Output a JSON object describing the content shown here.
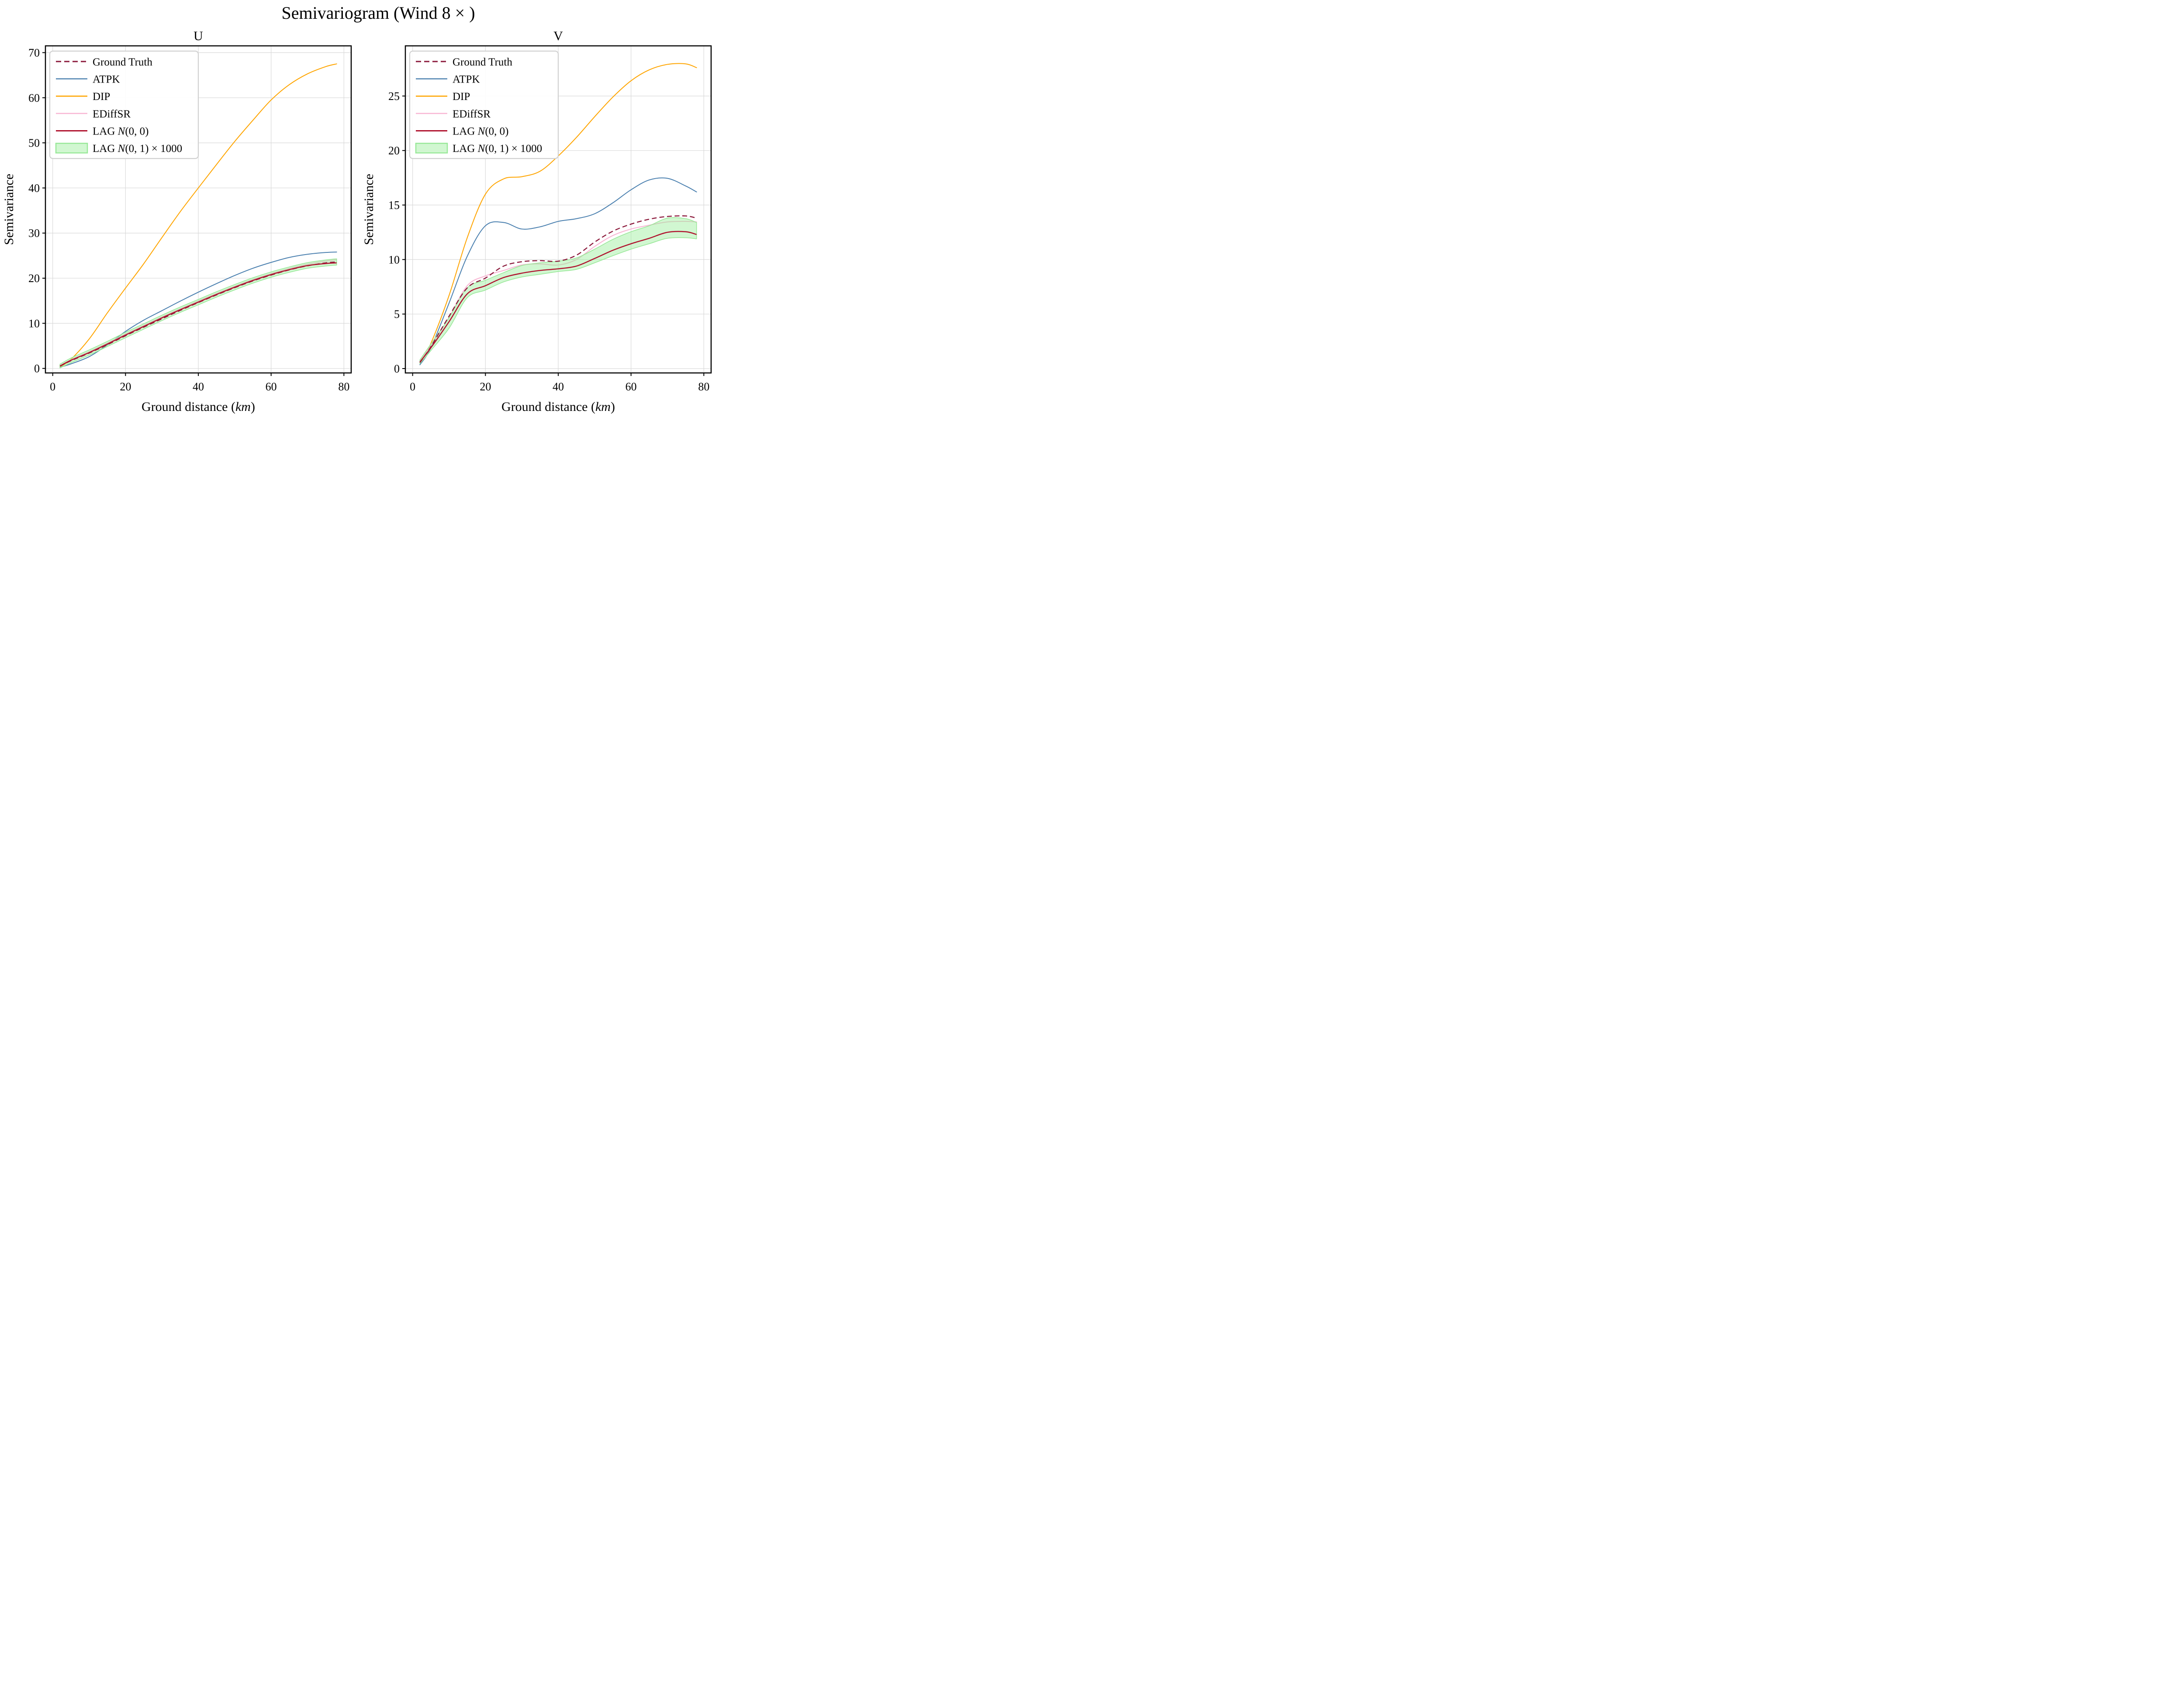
{
  "chart_data": {
    "type": "line",
    "title": "Semivariogram (Wind 8 × )",
    "x_label": "Ground distance (km)",
    "x_label_parts": {
      "prefix": "Ground distance (",
      "italic": "km",
      "suffix": ")"
    },
    "y_label": "Semivariance",
    "x_ticks": [
      0,
      20,
      40,
      60,
      80
    ],
    "grid": true,
    "legend_position": "upper left",
    "x": [
      2,
      5,
      10,
      15,
      20,
      25,
      30,
      35,
      40,
      45,
      50,
      55,
      60,
      65,
      70,
      75,
      78
    ],
    "panels": [
      {
        "name": "U",
        "ylim": [
          -1.0,
          71.5
        ],
        "xlim": [
          -2,
          82
        ],
        "y_ticks": [
          0,
          10,
          20,
          30,
          40,
          50,
          60,
          70
        ],
        "series": [
          {
            "key": "dip",
            "name": "DIP",
            "values": [
              0.3,
              2.0,
              6.5,
              12.3,
              17.8,
              23.2,
              29.0,
              34.7,
              40.0,
              45.2,
              50.3,
              55.0,
              59.5,
              62.9,
              65.3,
              66.9,
              67.5
            ]
          },
          {
            "key": "atpk",
            "name": "ATPK",
            "values": [
              0.25,
              1.0,
              2.6,
              5.2,
              8.2,
              10.7,
              12.8,
              14.9,
              16.9,
              18.8,
              20.6,
              22.2,
              23.5,
              24.6,
              25.3,
              25.7,
              25.8
            ]
          },
          {
            "key": "ediffsr",
            "name": "EDiffSR",
            "values": [
              0.6,
              1.9,
              3.7,
              5.6,
              7.6,
              9.5,
              11.4,
              13.2,
              14.95,
              16.6,
              18.2,
              19.7,
              21.0,
              22.15,
              23.1,
              23.8,
              24.1
            ]
          },
          {
            "key": "ground_truth",
            "name": "Ground Truth",
            "values": [
              0.5,
              1.7,
              3.4,
              5.25,
              7.25,
              9.15,
              11.0,
              12.85,
              14.6,
              16.3,
              17.9,
              19.4,
              20.7,
              21.85,
              22.75,
              23.4,
              23.6
            ]
          },
          {
            "key": "lag",
            "name": "LAG 𝒩(0, 0)",
            "values": [
              0.55,
              1.8,
              3.5,
              5.4,
              7.4,
              9.3,
              11.2,
              13.0,
              14.7,
              16.4,
              18.0,
              19.5,
              20.8,
              21.9,
              22.8,
              23.25,
              23.4
            ]
          }
        ],
        "band": {
          "key": "band",
          "name": "LAG 𝒩(0, 1) × 1000",
          "lower": [
            0.1,
            1.25,
            2.95,
            4.85,
            6.8,
            8.7,
            10.6,
            12.4,
            14.1,
            15.8,
            17.4,
            18.9,
            20.2,
            21.3,
            22.2,
            22.7,
            22.9
          ],
          "upper": [
            0.95,
            2.3,
            4.1,
            6.0,
            8.0,
            9.9,
            11.8,
            13.6,
            15.3,
            17.0,
            18.6,
            20.1,
            21.4,
            22.5,
            23.45,
            24.05,
            24.3
          ]
        }
      },
      {
        "name": "V",
        "ylim": [
          -0.4,
          29.6
        ],
        "xlim": [
          -2,
          82
        ],
        "y_ticks": [
          0,
          5,
          10,
          15,
          20,
          25
        ],
        "series": [
          {
            "key": "dip",
            "name": "DIP",
            "values": [
              0.5,
              2.3,
              6.7,
              12.0,
              16.0,
              17.4,
              17.6,
              18.1,
              19.5,
              21.2,
              23.1,
              24.9,
              26.4,
              27.4,
              27.9,
              27.95,
              27.6
            ]
          },
          {
            "key": "atpk",
            "name": "ATPK",
            "values": [
              0.35,
              1.9,
              6.0,
              10.3,
              13.1,
              13.4,
              12.8,
              13.0,
              13.5,
              13.75,
              14.2,
              15.2,
              16.4,
              17.3,
              17.45,
              16.75,
              16.2
            ]
          },
          {
            "key": "ediffsr",
            "name": "EDiffSR",
            "values": [
              0.7,
              2.1,
              4.7,
              7.6,
              8.5,
              9.0,
              9.5,
              9.6,
              9.5,
              10.0,
              11.2,
              12.2,
              12.8,
              13.15,
              13.45,
              13.5,
              13.45
            ]
          },
          {
            "key": "ground_truth",
            "name": "Ground Truth",
            "values": [
              0.55,
              2.0,
              4.8,
              7.4,
              8.3,
              9.4,
              9.8,
              9.9,
              9.85,
              10.4,
              11.6,
              12.6,
              13.25,
              13.7,
              13.95,
              14.0,
              13.8
            ]
          },
          {
            "key": "lag",
            "name": "LAG 𝒩(0, 0)",
            "values": [
              0.6,
              1.9,
              4.3,
              6.85,
              7.6,
              8.35,
              8.75,
              9.0,
              9.15,
              9.4,
              10.1,
              10.85,
              11.45,
              11.95,
              12.5,
              12.55,
              12.3
            ]
          }
        ],
        "band": {
          "key": "band",
          "name": "LAG 𝒩(0, 1) × 1000",
          "lower": [
            0.45,
            1.65,
            3.7,
            6.5,
            7.2,
            7.95,
            8.4,
            8.65,
            8.9,
            9.1,
            9.7,
            10.35,
            10.95,
            11.45,
            11.95,
            12.0,
            11.9
          ],
          "upper": [
            0.8,
            2.25,
            4.65,
            7.4,
            8.1,
            8.8,
            9.45,
            9.7,
            9.85,
            10.15,
            10.95,
            11.85,
            12.55,
            13.1,
            13.8,
            13.75,
            13.4
          ]
        }
      }
    ]
  },
  "legend": [
    {
      "key": "ground_truth",
      "label": "Ground Truth",
      "style": "dashed"
    },
    {
      "key": "atpk",
      "label": "ATPK",
      "style": "solid"
    },
    {
      "key": "dip",
      "label": "DIP",
      "style": "solid"
    },
    {
      "key": "ediffsr",
      "label": "EDiffSR",
      "style": "solid"
    },
    {
      "key": "lag",
      "label": "LAG 𝒩(0, 0)",
      "style": "solid"
    },
    {
      "key": "band",
      "label": "LAG 𝒩(0, 1) × 1000",
      "style": "band"
    }
  ],
  "colors": {
    "ground_truth": "#8C1A3C",
    "atpk": "#4B80AF",
    "dip": "#FFA500",
    "ediffsr": "#F8B7D4",
    "lag": "#B0132F",
    "band_edge": "#98E898",
    "band_fill": "rgba(152,238,152,0.45)",
    "grid": "#D9D9D9",
    "spine": "#000000",
    "legend_border": "#D0D0D0"
  }
}
